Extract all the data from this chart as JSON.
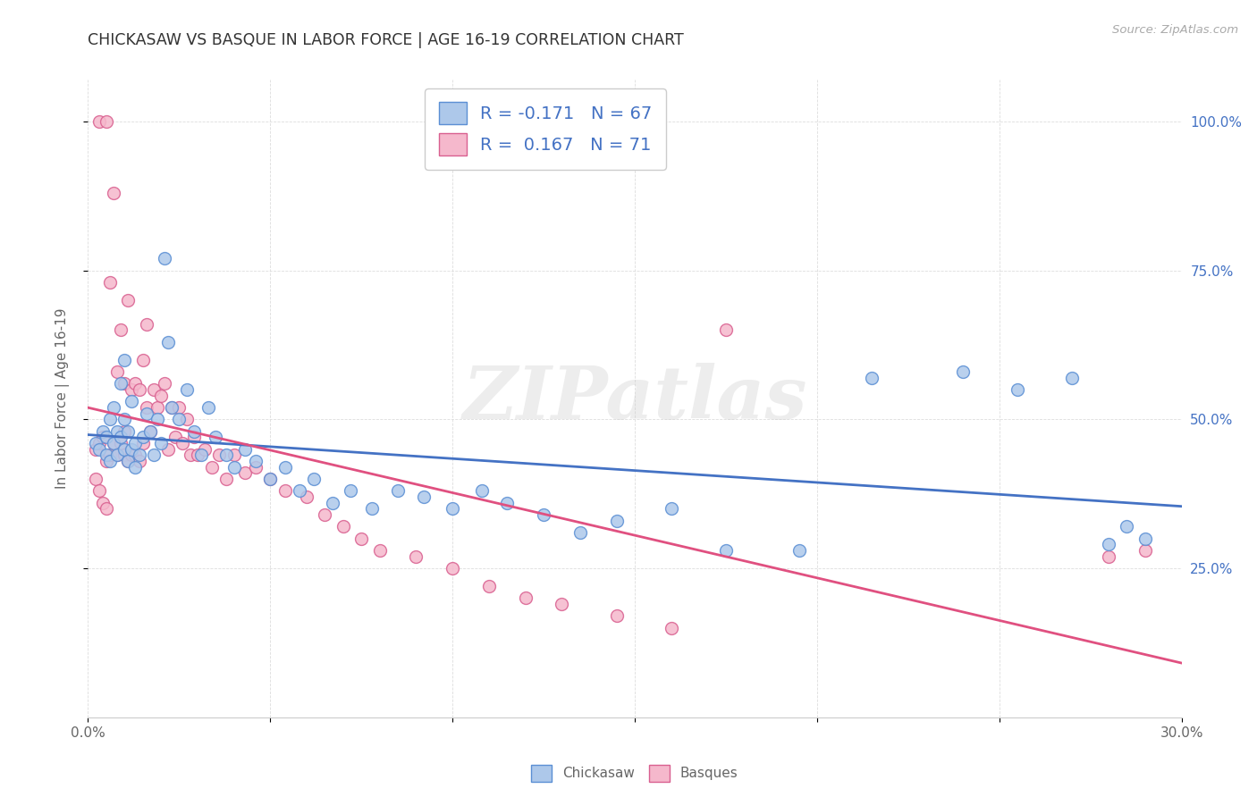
{
  "title": "CHICKASAW VS BASQUE IN LABOR FORCE | AGE 16-19 CORRELATION CHART",
  "source_text": "Source: ZipAtlas.com",
  "ylabel": "In Labor Force | Age 16-19",
  "xlim": [
    0.0,
    0.3
  ],
  "ylim": [
    0.0,
    1.07
  ],
  "yticks": [
    0.25,
    0.5,
    0.75,
    1.0
  ],
  "ytick_labels": [
    "25.0%",
    "50.0%",
    "75.0%",
    "100.0%"
  ],
  "xtick_labels_show": [
    "0.0%",
    "30.0%"
  ],
  "r_chickasaw": -0.171,
  "n_chickasaw": 67,
  "r_basque": 0.167,
  "n_basque": 71,
  "color_chickasaw_fill": "#adc8ea",
  "color_chickasaw_edge": "#5b8fd4",
  "color_basque_fill": "#f5b8cc",
  "color_basque_edge": "#d96090",
  "color_trendline_chickasaw": "#4472c4",
  "color_trendline_basque": "#e05080",
  "watermark": "ZIPatlas",
  "background_color": "#ffffff",
  "legend_text_color": "#4472c4",
  "ytick_color": "#4472c4",
  "chickasaw_x": [
    0.002,
    0.003,
    0.004,
    0.005,
    0.005,
    0.006,
    0.006,
    0.007,
    0.007,
    0.008,
    0.008,
    0.009,
    0.009,
    0.01,
    0.01,
    0.01,
    0.011,
    0.011,
    0.012,
    0.012,
    0.013,
    0.013,
    0.014,
    0.015,
    0.016,
    0.017,
    0.018,
    0.019,
    0.02,
    0.021,
    0.022,
    0.023,
    0.025,
    0.027,
    0.029,
    0.031,
    0.033,
    0.035,
    0.038,
    0.04,
    0.043,
    0.046,
    0.05,
    0.054,
    0.058,
    0.062,
    0.067,
    0.072,
    0.078,
    0.085,
    0.092,
    0.1,
    0.108,
    0.115,
    0.125,
    0.135,
    0.145,
    0.16,
    0.175,
    0.195,
    0.215,
    0.24,
    0.255,
    0.27,
    0.28,
    0.285,
    0.29
  ],
  "chickasaw_y": [
    0.46,
    0.45,
    0.48,
    0.47,
    0.44,
    0.5,
    0.43,
    0.46,
    0.52,
    0.48,
    0.44,
    0.47,
    0.56,
    0.45,
    0.5,
    0.6,
    0.43,
    0.48,
    0.45,
    0.53,
    0.46,
    0.42,
    0.44,
    0.47,
    0.51,
    0.48,
    0.44,
    0.5,
    0.46,
    0.77,
    0.63,
    0.52,
    0.5,
    0.55,
    0.48,
    0.44,
    0.52,
    0.47,
    0.44,
    0.42,
    0.45,
    0.43,
    0.4,
    0.42,
    0.38,
    0.4,
    0.36,
    0.38,
    0.35,
    0.38,
    0.37,
    0.35,
    0.38,
    0.36,
    0.34,
    0.31,
    0.33,
    0.35,
    0.28,
    0.28,
    0.57,
    0.58,
    0.55,
    0.57,
    0.29,
    0.32,
    0.3
  ],
  "basque_x": [
    0.002,
    0.003,
    0.003,
    0.004,
    0.005,
    0.005,
    0.006,
    0.006,
    0.007,
    0.007,
    0.008,
    0.008,
    0.009,
    0.009,
    0.01,
    0.01,
    0.01,
    0.011,
    0.011,
    0.012,
    0.012,
    0.013,
    0.013,
    0.014,
    0.014,
    0.015,
    0.015,
    0.016,
    0.016,
    0.017,
    0.018,
    0.019,
    0.02,
    0.021,
    0.022,
    0.023,
    0.024,
    0.025,
    0.026,
    0.027,
    0.028,
    0.029,
    0.03,
    0.032,
    0.034,
    0.036,
    0.038,
    0.04,
    0.043,
    0.046,
    0.05,
    0.054,
    0.06,
    0.065,
    0.07,
    0.075,
    0.08,
    0.09,
    0.1,
    0.11,
    0.12,
    0.13,
    0.145,
    0.16,
    0.002,
    0.003,
    0.004,
    0.005,
    0.175,
    0.28,
    0.29
  ],
  "basque_y": [
    0.45,
    0.46,
    1.0,
    0.47,
    0.43,
    1.0,
    0.44,
    0.73,
    0.46,
    0.88,
    0.44,
    0.58,
    0.46,
    0.65,
    0.44,
    0.48,
    0.56,
    0.43,
    0.7,
    0.44,
    0.55,
    0.44,
    0.56,
    0.55,
    0.43,
    0.46,
    0.6,
    0.52,
    0.66,
    0.48,
    0.55,
    0.52,
    0.54,
    0.56,
    0.45,
    0.52,
    0.47,
    0.52,
    0.46,
    0.5,
    0.44,
    0.47,
    0.44,
    0.45,
    0.42,
    0.44,
    0.4,
    0.44,
    0.41,
    0.42,
    0.4,
    0.38,
    0.37,
    0.34,
    0.32,
    0.3,
    0.28,
    0.27,
    0.25,
    0.22,
    0.2,
    0.19,
    0.17,
    0.15,
    0.4,
    0.38,
    0.36,
    0.35,
    0.65,
    0.27,
    0.28
  ]
}
